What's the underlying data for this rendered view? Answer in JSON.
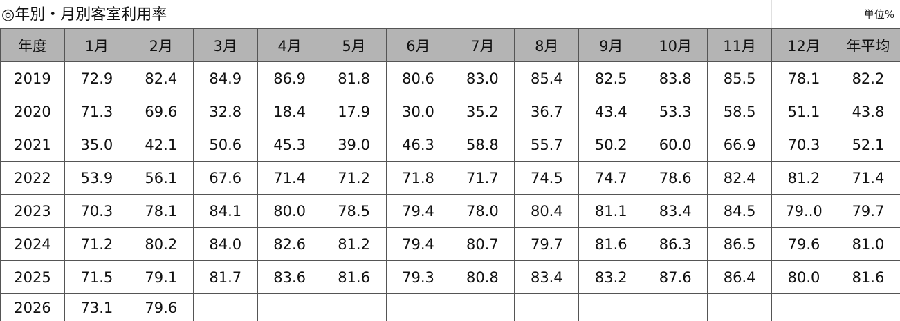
{
  "title": "◎年別・月別客室利用率",
  "unit": "単位%",
  "table": {
    "header": [
      "年度",
      "1月",
      "2月",
      "3月",
      "4月",
      "5月",
      "6月",
      "7月",
      "8月",
      "9月",
      "10月",
      "11月",
      "12月",
      "年平均"
    ],
    "rows": [
      [
        "2019",
        "72.9",
        "82.4",
        "84.9",
        "86.9",
        "81.8",
        "80.6",
        "83.0",
        "85.4",
        "82.5",
        "83.8",
        "85.5",
        "78.1",
        "82.2"
      ],
      [
        "2020",
        "71.3",
        "69.6",
        "32.8",
        "18.4",
        "17.9",
        "30.0",
        "35.2",
        "36.7",
        "43.4",
        "53.3",
        "58.5",
        "51.1",
        "43.8"
      ],
      [
        "2021",
        "35.0",
        "42.1",
        "50.6",
        "45.3",
        "39.0",
        "46.3",
        "58.8",
        "55.7",
        "50.2",
        "60.0",
        "66.9",
        "70.3",
        "52.1"
      ],
      [
        "2022",
        "53.9",
        "56.1",
        "67.6",
        "71.4",
        "71.2",
        "71.8",
        "71.7",
        "74.5",
        "74.7",
        "78.6",
        "82.4",
        "81.2",
        "71.4"
      ],
      [
        "2023",
        "70.3",
        "78.1",
        "84.1",
        "80.0",
        "78.5",
        "79.4",
        "78.0",
        "80.4",
        "81.1",
        "83.4",
        "84.5",
        "79..0",
        "79.7"
      ],
      [
        "2024",
        "71.2",
        "80.2",
        "84.0",
        "82.6",
        "81.2",
        "79.4",
        "80.7",
        "79.7",
        "81.6",
        "86.3",
        "86.5",
        "79.6",
        "81.0"
      ],
      [
        "2025",
        "71.5",
        "79.1",
        "81.7",
        "83.6",
        "81.6",
        "79.3",
        "80.8",
        "83.4",
        "83.2",
        "87.6",
        "86.4",
        "80.0",
        "81.6"
      ],
      [
        "2026",
        "73.1",
        "79.6"
      ]
    ]
  }
}
